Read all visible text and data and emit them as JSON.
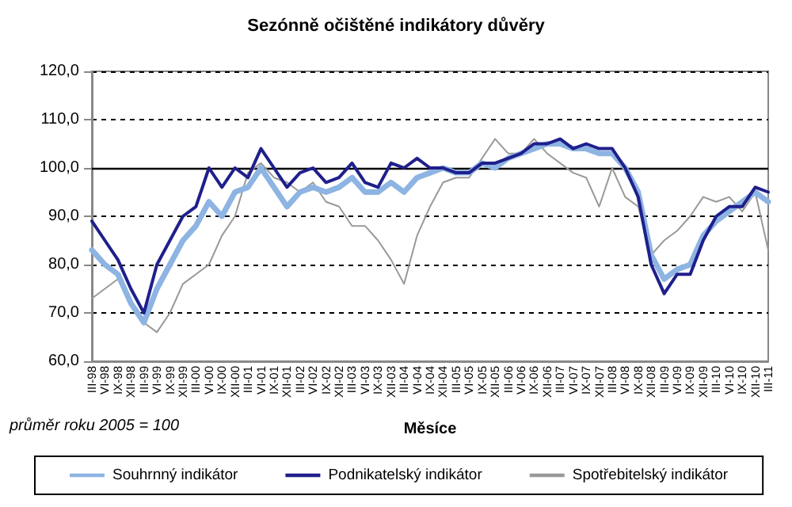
{
  "chart_data": {
    "type": "line",
    "title": "Sezónně očištěné indikátory důvěry",
    "xlabel": "Měsíce",
    "annotations": [
      "průměr roku 2005 = 100"
    ],
    "categories": [
      "III-98",
      "VI-98",
      "IX-98",
      "XII-98",
      "III-99",
      "VI-99",
      "IX-99",
      "XII-99",
      "III-00",
      "VI-00",
      "IX-00",
      "XII-00",
      "III-01",
      "VI-01",
      "IX-01",
      "XII-01",
      "III-02",
      "VI-02",
      "IX-02",
      "XII-02",
      "III-03",
      "VI-03",
      "IX-03",
      "XII-03",
      "III-04",
      "VI-04",
      "IX-04",
      "XII-04",
      "III-05",
      "VI-05",
      "IX-05",
      "XII-05",
      "III-06",
      "VI-06",
      "IX-06",
      "XII-06",
      "III-07",
      "VI-07",
      "IX-07",
      "XII-07",
      "III-08",
      "VI-08",
      "IX-08",
      "XII-08",
      "III-09",
      "VI-09",
      "IX-09",
      "XII-09",
      "III-10",
      "VI-10",
      "IX-10",
      "XII-10",
      "III-11"
    ],
    "series": [
      {
        "name": "Souhrnný indikátor",
        "color": "#8db4e2",
        "values": [
          83,
          80,
          78,
          72,
          68,
          75,
          80,
          85,
          88,
          93,
          90,
          95,
          96,
          100,
          96,
          92,
          95,
          96,
          95,
          96,
          98,
          95,
          95,
          97,
          95,
          98,
          99,
          100,
          99,
          99,
          101,
          100,
          102,
          103,
          104,
          105,
          105,
          104,
          104,
          103,
          103,
          100,
          95,
          82,
          77,
          79,
          80,
          86,
          89,
          91,
          93,
          95,
          93
        ]
      },
      {
        "name": "Podnikatelský indikátor",
        "color": "#1f1f8c",
        "values": [
          89,
          85,
          81,
          75,
          70,
          80,
          85,
          90,
          92,
          100,
          96,
          100,
          98,
          104,
          100,
          96,
          99,
          100,
          97,
          98,
          101,
          97,
          96,
          101,
          100,
          102,
          100,
          100,
          99,
          99,
          101,
          101,
          102,
          103,
          105,
          105,
          106,
          104,
          105,
          104,
          104,
          100,
          94,
          80,
          74,
          78,
          78,
          85,
          90,
          92,
          92,
          96,
          95
        ]
      },
      {
        "name": "Spotřebitelský indikátor",
        "color": "#999999",
        "values": [
          73,
          75,
          77,
          72,
          68,
          66,
          70,
          76,
          78,
          80,
          86,
          90,
          99,
          101,
          98,
          97,
          95,
          97,
          93,
          92,
          88,
          88,
          85,
          81,
          76,
          86,
          92,
          97,
          98,
          98,
          102,
          106,
          103,
          103,
          106,
          103,
          101,
          99,
          98,
          92,
          100,
          94,
          92,
          82,
          85,
          87,
          90,
          94,
          93,
          94,
          91,
          95,
          83
        ]
      }
    ],
    "ylim": [
      60,
      120
    ],
    "yticks": [
      {
        "value": 60,
        "label": "60,0"
      },
      {
        "value": 70,
        "label": "70,0"
      },
      {
        "value": 80,
        "label": "80,0"
      },
      {
        "value": 90,
        "label": "90,0"
      },
      {
        "value": 100,
        "label": "100,0"
      },
      {
        "value": 110,
        "label": "110,0"
      },
      {
        "value": 120,
        "label": "120,0"
      }
    ],
    "ref_lines": [
      {
        "axis": "y",
        "value": 100,
        "color": "#000000",
        "line_style": "solid"
      }
    ],
    "grid": "y",
    "legend": "bottom",
    "marker": "none",
    "line_style": "solid"
  }
}
